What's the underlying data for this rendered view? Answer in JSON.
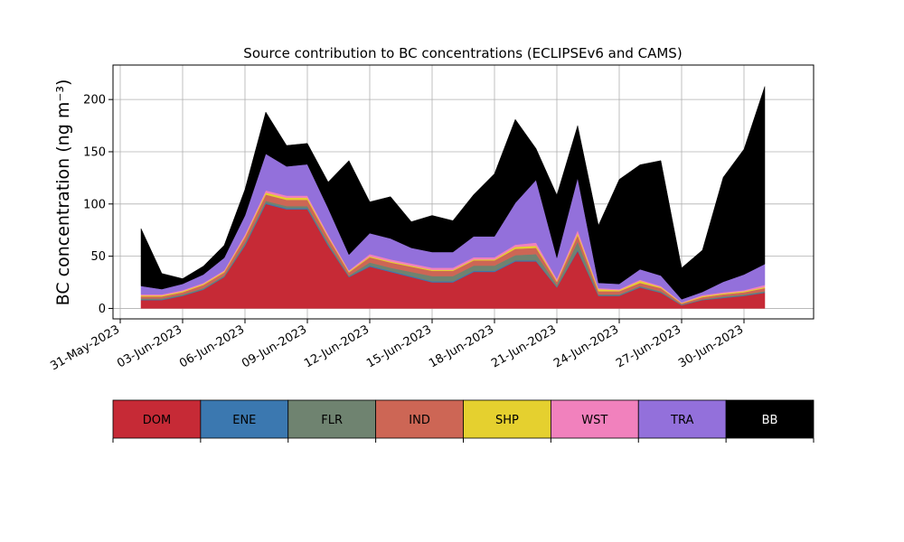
{
  "chart_data": {
    "type": "area",
    "stacked": true,
    "title": "Source contribution to BC concentrations (ECLIPSEv6 and CAMS)",
    "ylabel": "BC concentration (ng m⁻³)",
    "xlabel": "",
    "ylim": [
      -10,
      233
    ],
    "xlim": [
      "2023-05-31",
      "2023-07-03"
    ],
    "grid": true,
    "yticks": [
      0,
      50,
      100,
      150,
      200
    ],
    "xtick_labels": [
      "31-May-2023",
      "03-Jun-2023",
      "06-Jun-2023",
      "09-Jun-2023",
      "12-Jun-2023",
      "15-Jun-2023",
      "18-Jun-2023",
      "21-Jun-2023",
      "24-Jun-2023",
      "27-Jun-2023",
      "30-Jun-2023"
    ],
    "legend_placement": "below",
    "x": [
      "2023-06-01",
      "2023-06-02",
      "2023-06-03",
      "2023-06-04",
      "2023-06-05",
      "2023-06-06",
      "2023-06-07",
      "2023-06-08",
      "2023-06-09",
      "2023-06-10",
      "2023-06-11",
      "2023-06-12",
      "2023-06-13",
      "2023-06-14",
      "2023-06-15",
      "2023-06-16",
      "2023-06-17",
      "2023-06-18",
      "2023-06-19",
      "2023-06-20",
      "2023-06-21",
      "2023-06-22",
      "2023-06-23",
      "2023-06-24",
      "2023-06-25",
      "2023-06-26",
      "2023-06-27",
      "2023-06-28",
      "2023-06-29",
      "2023-06-30",
      "2023-07-01"
    ],
    "series": [
      {
        "name": "DOM",
        "color": "#c62a36",
        "values": [
          8,
          8,
          12,
          18,
          30,
          60,
          100,
          95,
          95,
          60,
          30,
          40,
          35,
          30,
          25,
          25,
          35,
          35,
          45,
          45,
          20,
          55,
          12,
          12,
          20,
          15,
          3,
          8,
          10,
          12,
          15
        ]
      },
      {
        "name": "ENE",
        "color": "#3b78b0",
        "values": [
          0.5,
          0.5,
          0.5,
          0.5,
          0.5,
          1,
          1,
          1,
          1,
          1,
          0.5,
          1,
          1,
          1,
          1,
          1,
          1,
          1,
          1,
          1,
          0.5,
          1,
          0.5,
          0.5,
          0.5,
          0.5,
          0.3,
          0.3,
          0.5,
          0.5,
          0.5
        ]
      },
      {
        "name": "FLR",
        "color": "#6f8370",
        "values": [
          1,
          1,
          1,
          1,
          1,
          2,
          2,
          2,
          2,
          2,
          1,
          3,
          3,
          4,
          5,
          5,
          5,
          5,
          5,
          6,
          2,
          8,
          1,
          1,
          1,
          1,
          0.5,
          0.5,
          1,
          1,
          1
        ]
      },
      {
        "name": "IND",
        "color": "#cd6655",
        "values": [
          2,
          2,
          2,
          3,
          3,
          5,
          6,
          6,
          6,
          5,
          3,
          5,
          5,
          5,
          5,
          5,
          5,
          5,
          6,
          6,
          3,
          6,
          3,
          3,
          3,
          3,
          1,
          2,
          2,
          2,
          3
        ]
      },
      {
        "name": "SHP",
        "color": "#e5d02f",
        "values": [
          1,
          1,
          1,
          1,
          1,
          1,
          2,
          2,
          2,
          1,
          1,
          1,
          1,
          1,
          1,
          1,
          1,
          1,
          2,
          2,
          1,
          2,
          2,
          1,
          2,
          1,
          0.5,
          1,
          1,
          1,
          1
        ]
      },
      {
        "name": "WST",
        "color": "#f181bd",
        "values": [
          1,
          1,
          1,
          1,
          1,
          2,
          2,
          2,
          2,
          2,
          1,
          2,
          2,
          2,
          2,
          2,
          2,
          2,
          2,
          3,
          2,
          3,
          1,
          1,
          1,
          1,
          0.5,
          1,
          1,
          1,
          2
        ]
      },
      {
        "name": "TRA",
        "color": "#9370db",
        "values": [
          8,
          5,
          6,
          8,
          12,
          18,
          35,
          28,
          30,
          25,
          15,
          20,
          20,
          15,
          15,
          15,
          20,
          20,
          40,
          60,
          20,
          50,
          5,
          5,
          10,
          10,
          3,
          3,
          10,
          15,
          20
        ]
      },
      {
        "name": "BB",
        "color": "#000000",
        "values": [
          55,
          15,
          5,
          8,
          12,
          25,
          40,
          20,
          20,
          25,
          90,
          30,
          40,
          25,
          35,
          30,
          40,
          60,
          80,
          30,
          60,
          50,
          55,
          100,
          100,
          110,
          30,
          40,
          100,
          120,
          170
        ]
      }
    ]
  },
  "legend": {
    "items": [
      {
        "label": "DOM",
        "color": "#c62a36",
        "text_color": "#000000"
      },
      {
        "label": "ENE",
        "color": "#3b78b0",
        "text_color": "#000000"
      },
      {
        "label": "FLR",
        "color": "#6f8370",
        "text_color": "#000000"
      },
      {
        "label": "IND",
        "color": "#cd6655",
        "text_color": "#000000"
      },
      {
        "label": "SHP",
        "color": "#e5d02f",
        "text_color": "#000000"
      },
      {
        "label": "WST",
        "color": "#f181bd",
        "text_color": "#000000"
      },
      {
        "label": "TRA",
        "color": "#9370db",
        "text_color": "#000000"
      },
      {
        "label": "BB",
        "color": "#000000",
        "text_color": "#ffffff"
      }
    ]
  }
}
